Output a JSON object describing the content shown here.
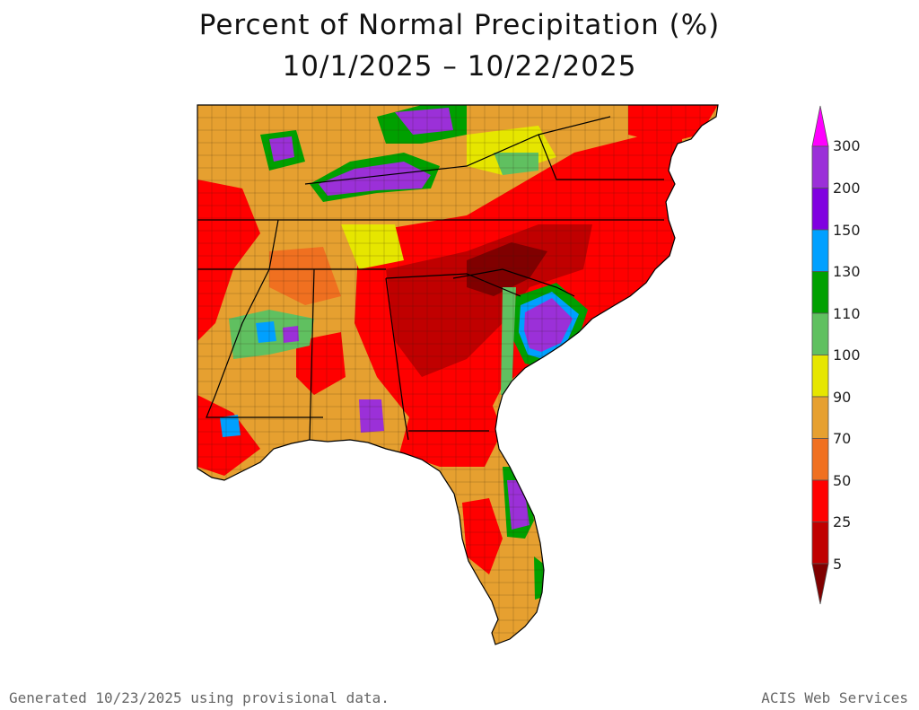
{
  "title": "Percent of Normal Precipitation (%)",
  "subtitle": "10/1/2025 – 10/22/2025",
  "legend": {
    "labels": [
      "300",
      "200",
      "150",
      "130",
      "110",
      "100",
      "90",
      "70",
      "50",
      "25",
      "5"
    ],
    "colors": [
      "#ff00ff",
      "#9b30d8",
      "#8000e0",
      "#00a0ff",
      "#00a000",
      "#60c060",
      "#e6e600",
      "#e6a030",
      "#f07020",
      "#ff0000",
      "#c00000",
      "#800000"
    ]
  },
  "footer": {
    "generated": "Generated 10/23/2025 using provisional data.",
    "credit": "ACIS Web Services"
  }
}
